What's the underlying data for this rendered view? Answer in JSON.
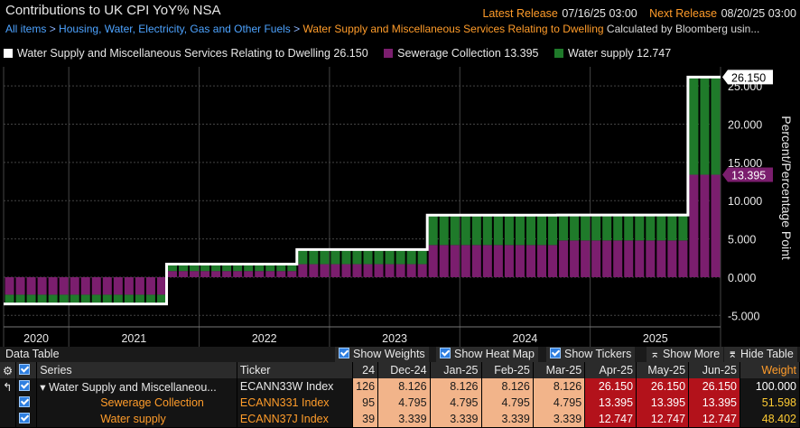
{
  "header": {
    "title": "Contributions to UK CPI YoY% NSA",
    "latest_label": "Latest Release",
    "latest_value": "07/16/25 03:00",
    "next_label": "Next Release",
    "next_value": "08/20/25 03:00"
  },
  "breadcrumb": {
    "items": [
      "All items",
      "Housing, Water, Electricity, Gas and Other Fuels",
      "Water Supply and Miscellaneous Services Relating to Dwelling"
    ],
    "note": "Calculated by Bloomberg usin..."
  },
  "legend": [
    {
      "label": "Water Supply and Miscellaneous Services Relating to Dwelling",
      "value": "26.150",
      "color": "#ffffff"
    },
    {
      "label": "Sewerage Collection",
      "value": "13.395",
      "color": "#7b1e6e"
    },
    {
      "label": "Water supply",
      "value": "12.747",
      "color": "#1f7a2a"
    }
  ],
  "chart_data": {
    "type": "bar",
    "x_ticks": [
      "2020",
      "2021",
      "2022",
      "2023",
      "2024",
      "2025"
    ],
    "ylabel": "Percent/Percentage Point",
    "y_ticks": [
      "25.000",
      "20.000",
      "15.000",
      "10.000",
      "5.000",
      "0.000",
      "-5.000"
    ],
    "ylim": [
      -6.5,
      27.5
    ],
    "grid": true,
    "series": [
      {
        "name": "Sewerage Collection",
        "color": "#7b1e6e",
        "values": [
          -2.3,
          -2.3,
          -2.3,
          -2.3,
          -2.3,
          -2.3,
          -2.3,
          -2.3,
          -2.3,
          -2.3,
          -2.3,
          -2.3,
          -2.3,
          -2.3,
          -2.3,
          0.8,
          0.8,
          0.8,
          0.8,
          0.8,
          0.8,
          0.8,
          0.8,
          0.8,
          0.8,
          0.8,
          0.8,
          1.7,
          1.7,
          1.7,
          1.7,
          1.7,
          1.7,
          1.7,
          1.7,
          1.7,
          1.7,
          1.7,
          1.7,
          4.2,
          4.2,
          4.2,
          4.2,
          4.2,
          4.2,
          4.2,
          4.2,
          4.2,
          4.2,
          4.2,
          4.2,
          4.795,
          4.795,
          4.795,
          4.795,
          4.795,
          4.795,
          4.795,
          4.795,
          4.795,
          4.795,
          4.795,
          4.795,
          13.395,
          13.395,
          13.395
        ]
      },
      {
        "name": "Water supply",
        "color": "#1f7a2a",
        "values": [
          -1.2,
          -1.2,
          -1.2,
          -1.2,
          -1.2,
          -1.2,
          -1.2,
          -1.2,
          -1.2,
          -1.2,
          -1.2,
          -1.2,
          -1.2,
          -1.2,
          -1.2,
          0.9,
          0.9,
          0.9,
          0.9,
          0.9,
          0.9,
          0.9,
          0.9,
          0.9,
          0.9,
          0.9,
          0.9,
          1.9,
          1.9,
          1.9,
          1.9,
          1.9,
          1.9,
          1.9,
          1.9,
          1.9,
          1.9,
          1.9,
          1.9,
          3.9,
          3.9,
          3.9,
          3.9,
          3.9,
          3.9,
          3.9,
          3.9,
          3.9,
          3.9,
          3.9,
          3.9,
          3.339,
          3.339,
          3.339,
          3.339,
          3.339,
          3.339,
          3.339,
          3.339,
          3.339,
          3.339,
          3.339,
          3.339,
          12.747,
          12.747,
          12.747
        ]
      },
      {
        "name": "Water Supply and Miscellaneous Services Relating to Dwelling",
        "color": "#ffffff",
        "values": [
          -3.5,
          -3.5,
          -3.5,
          -3.5,
          -3.5,
          -3.5,
          -3.5,
          -3.5,
          -3.5,
          -3.5,
          -3.5,
          -3.5,
          -3.5,
          -3.5,
          -3.5,
          1.7,
          1.7,
          1.7,
          1.7,
          1.7,
          1.7,
          1.7,
          1.7,
          1.7,
          1.7,
          1.7,
          1.7,
          3.6,
          3.6,
          3.6,
          3.6,
          3.6,
          3.6,
          3.6,
          3.6,
          3.6,
          3.6,
          3.6,
          3.6,
          8.1,
          8.1,
          8.1,
          8.1,
          8.1,
          8.1,
          8.1,
          8.1,
          8.1,
          8.1,
          8.1,
          8.1,
          8.126,
          8.126,
          8.126,
          8.126,
          8.126,
          8.126,
          8.126,
          8.126,
          8.126,
          8.126,
          8.126,
          8.126,
          26.15,
          26.15,
          26.15
        ]
      }
    ],
    "end_labels": [
      {
        "text": "26.150",
        "value": 26.15,
        "bg": "#ffffff",
        "fg": "#000000"
      },
      {
        "text": "13.395",
        "value": 13.395,
        "bg": "#7b1e6e",
        "fg": "#ffffff"
      }
    ]
  },
  "data_table": {
    "title": "Data Table",
    "options": [
      "Show Weights",
      "Show Heat Map",
      "Show Tickers",
      "Show More",
      "Hide Table"
    ],
    "headers": {
      "series": "Series",
      "ticker": "Ticker",
      "first_col": "24",
      "cols": [
        "Dec-24",
        "Jan-25",
        "Feb-25",
        "Mar-25",
        "Apr-25",
        "May-25",
        "Jun-25"
      ],
      "weight": "Weight"
    },
    "rows": [
      {
        "series": "Water Supply and Miscellaneou...",
        "ticker": "ECANN33W Index",
        "first": "126",
        "values": [
          "8.126",
          "8.126",
          "8.126",
          "8.126",
          "26.150",
          "26.150",
          "26.150"
        ],
        "weight": "100.000"
      },
      {
        "series": "Sewerage Collection",
        "ticker": "ECANN331 Index",
        "first": "95",
        "values": [
          "4.795",
          "4.795",
          "4.795",
          "4.795",
          "13.395",
          "13.395",
          "13.395"
        ],
        "weight": "51.598"
      },
      {
        "series": "Water supply",
        "ticker": "ECANN37J Index",
        "first": "39",
        "values": [
          "3.339",
          "3.339",
          "3.339",
          "3.339",
          "12.747",
          "12.747",
          "12.747"
        ],
        "weight": "48.402"
      }
    ]
  }
}
